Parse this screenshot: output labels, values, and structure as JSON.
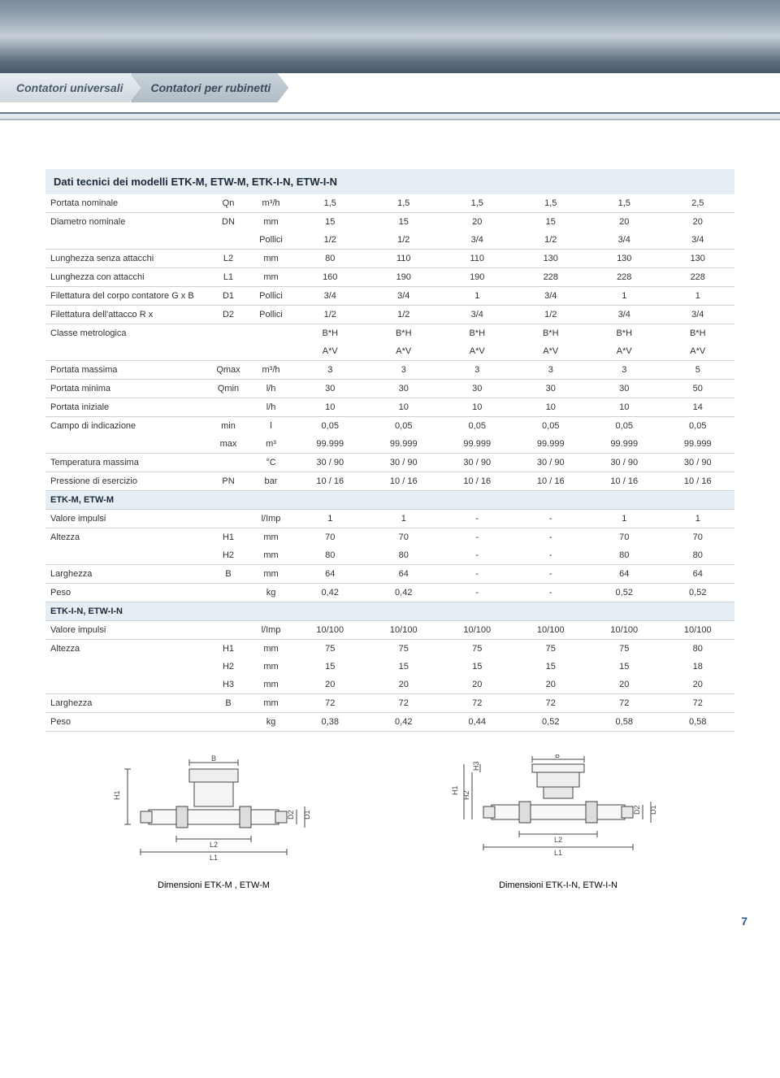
{
  "breadcrumb": {
    "item1": "Contatori universali",
    "item2": "Contatori per rubinetti"
  },
  "table_title": "Dati tecnici dei modelli ETK-M, ETW-M, ETK-I-N, ETW-I-N",
  "section1": "ETK-M, ETW-M",
  "section2": "ETK-I-N, ETW-I-N",
  "rows": {
    "r1": {
      "label": "Portata nominale",
      "sym": "Qn",
      "unit": "m³/h",
      "v": [
        "1,5",
        "1,5",
        "1,5",
        "1,5",
        "1,5",
        "2,5"
      ]
    },
    "r2a": {
      "label": "Diametro nominale",
      "sym": "DN",
      "unit": "mm",
      "v": [
        "15",
        "15",
        "20",
        "15",
        "20",
        "20"
      ]
    },
    "r2b": {
      "label": "",
      "sym": "",
      "unit": "Pollici",
      "v": [
        "1/2",
        "1/2",
        "3/4",
        "1/2",
        "3/4",
        "3/4"
      ]
    },
    "r3": {
      "label": "Lunghezza senza attacchi",
      "sym": "L2",
      "unit": "mm",
      "v": [
        "80",
        "110",
        "110",
        "130",
        "130",
        "130"
      ]
    },
    "r4": {
      "label": "Lunghezza con attacchi",
      "sym": "L1",
      "unit": "mm",
      "v": [
        "160",
        "190",
        "190",
        "228",
        "228",
        "228"
      ]
    },
    "r5": {
      "label": "Filettatura del corpo contatore G x B",
      "sym": "D1",
      "unit": "Pollici",
      "v": [
        "3/4",
        "3/4",
        "1",
        "3/4",
        "1",
        "1"
      ]
    },
    "r6": {
      "label": "Filettatura dell'attacco R x",
      "sym": "D2",
      "unit": "Pollici",
      "v": [
        "1/2",
        "1/2",
        "3/4",
        "1/2",
        "3/4",
        "3/4"
      ]
    },
    "r7a": {
      "label": "Classe metrologica",
      "sym": "",
      "unit": "",
      "v": [
        "B*H",
        "B*H",
        "B*H",
        "B*H",
        "B*H",
        "B*H"
      ]
    },
    "r7b": {
      "label": "",
      "sym": "",
      "unit": "",
      "v": [
        "A*V",
        "A*V",
        "A*V",
        "A*V",
        "A*V",
        "A*V"
      ]
    },
    "r8": {
      "label": "Portata massima",
      "sym": "Qmax",
      "unit": "m³/h",
      "v": [
        "3",
        "3",
        "3",
        "3",
        "3",
        "5"
      ]
    },
    "r9": {
      "label": "Portata minima",
      "sym": "Qmin",
      "unit": "l/h",
      "v": [
        "30",
        "30",
        "30",
        "30",
        "30",
        "50"
      ]
    },
    "r10": {
      "label": "Portata iniziale",
      "sym": "",
      "unit": "l/h",
      "v": [
        "10",
        "10",
        "10",
        "10",
        "10",
        "14"
      ]
    },
    "r11a": {
      "label": "Campo di indicazione",
      "sym": "min",
      "unit": "l",
      "v": [
        "0,05",
        "0,05",
        "0,05",
        "0,05",
        "0,05",
        "0,05"
      ]
    },
    "r11b": {
      "label": "",
      "sym": "max",
      "unit": "m³",
      "v": [
        "99.999",
        "99.999",
        "99.999",
        "99.999",
        "99.999",
        "99.999"
      ]
    },
    "r12": {
      "label": "Temperatura massima",
      "sym": "",
      "unit": "°C",
      "v": [
        "30 / 90",
        "30 / 90",
        "30 / 90",
        "30 / 90",
        "30 / 90",
        "30 / 90"
      ]
    },
    "r13": {
      "label": "Pressione di esercizio",
      "sym": "PN",
      "unit": "bar",
      "v": [
        "10 / 16",
        "10 / 16",
        "10 / 16",
        "10 / 16",
        "10 / 16",
        "10 / 16"
      ]
    },
    "s1r1": {
      "label": "Valore impulsi",
      "sym": "",
      "unit": "l/Imp",
      "v": [
        "1",
        "1",
        "-",
        "-",
        "1",
        "1"
      ]
    },
    "s1r2": {
      "label": "Altezza",
      "sym": "H1",
      "unit": "mm",
      "v": [
        "70",
        "70",
        "-",
        "-",
        "70",
        "70"
      ]
    },
    "s1r3": {
      "label": "",
      "sym": "H2",
      "unit": "mm",
      "v": [
        "80",
        "80",
        "-",
        "-",
        "80",
        "80"
      ]
    },
    "s1r4": {
      "label": "Larghezza",
      "sym": "B",
      "unit": "mm",
      "v": [
        "64",
        "64",
        "-",
        "-",
        "64",
        "64"
      ]
    },
    "s1r5": {
      "label": "Peso",
      "sym": "",
      "unit": "kg",
      "v": [
        "0,42",
        "0,42",
        "-",
        "-",
        "0,52",
        "0,52"
      ]
    },
    "s2r1": {
      "label": "Valore impulsi",
      "sym": "",
      "unit": "l/Imp",
      "v": [
        "10/100",
        "10/100",
        "10/100",
        "10/100",
        "10/100",
        "10/100"
      ]
    },
    "s2r2": {
      "label": "Altezza",
      "sym": "H1",
      "unit": "mm",
      "v": [
        "75",
        "75",
        "75",
        "75",
        "75",
        "80"
      ]
    },
    "s2r3": {
      "label": "",
      "sym": "H2",
      "unit": "mm",
      "v": [
        "15",
        "15",
        "15",
        "15",
        "15",
        "18"
      ]
    },
    "s2r4": {
      "label": "",
      "sym": "H3",
      "unit": "mm",
      "v": [
        "20",
        "20",
        "20",
        "20",
        "20",
        "20"
      ]
    },
    "s2r5": {
      "label": "Larghezza",
      "sym": "B",
      "unit": "mm",
      "v": [
        "72",
        "72",
        "72",
        "72",
        "72",
        "72"
      ]
    },
    "s2r6": {
      "label": "Peso",
      "sym": "",
      "unit": "kg",
      "v": [
        "0,38",
        "0,42",
        "0,44",
        "0,52",
        "0,58",
        "0,58"
      ]
    }
  },
  "diag": {
    "cap1": "Dimensioni  ETK-M , ETW-M",
    "cap2": "Dimensioni  ETK-I-N, ETW-I-N",
    "lbl_B": "B",
    "lbl_H1": "H1",
    "lbl_H2": "H2",
    "lbl_H3": "H3",
    "lbl_D1": "D1",
    "lbl_D2": "D2",
    "lbl_L1": "L1",
    "lbl_L2": "L2"
  },
  "style": {
    "header_bg": "#e6edf3",
    "row_border": "#c8d2da",
    "text_color": "#333333",
    "title_color": "#1a2a3a",
    "base_font_size": 11,
    "title_font_size": 13
  },
  "page_number": "7"
}
